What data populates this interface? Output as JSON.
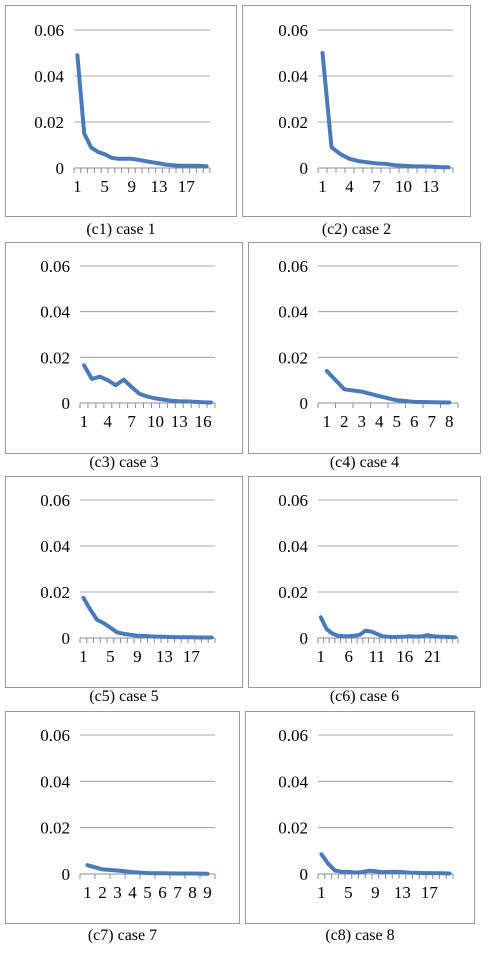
{
  "chart_data": [
    {
      "type": "line",
      "caption": "(c1) case 1",
      "x": [
        1,
        2,
        3,
        4,
        5,
        6,
        7,
        8,
        9,
        10,
        11,
        12,
        13,
        14,
        15,
        16,
        17,
        18,
        19,
        20
      ],
      "x_tick_labels": [
        "1",
        "5",
        "9",
        "13",
        "17"
      ],
      "x_tick_values": [
        1,
        5,
        9,
        13,
        17
      ],
      "y_tick_labels": [
        "0",
        "0.02",
        "0.04",
        "0.06"
      ],
      "ylim": [
        0,
        0.06
      ],
      "grid": true,
      "values": [
        0.049,
        0.015,
        0.009,
        0.007,
        0.006,
        0.0045,
        0.004,
        0.004,
        0.004,
        0.0035,
        0.003,
        0.0025,
        0.002,
        0.0015,
        0.0012,
        0.001,
        0.001,
        0.001,
        0.0009,
        0.0008
      ]
    },
    {
      "type": "line",
      "caption": "(c2) case 2",
      "x": [
        1,
        2,
        3,
        4,
        5,
        6,
        7,
        8,
        9,
        10,
        11,
        12,
        13,
        14,
        15
      ],
      "x_tick_labels": [
        "1",
        "4",
        "7",
        "10",
        "13"
      ],
      "x_tick_values": [
        1,
        4,
        7,
        10,
        13
      ],
      "y_tick_labels": [
        "0",
        "0.02",
        "0.04",
        "0.06"
      ],
      "ylim": [
        0,
        0.06
      ],
      "grid": true,
      "values": [
        0.05,
        0.009,
        0.006,
        0.004,
        0.003,
        0.0025,
        0.002,
        0.0018,
        0.0012,
        0.001,
        0.0008,
        0.0007,
        0.0006,
        0.0004,
        0.0003
      ]
    },
    {
      "type": "line",
      "caption": "(c3) case 3",
      "x": [
        1,
        2,
        3,
        4,
        5,
        6,
        7,
        8,
        9,
        10,
        11,
        12,
        13,
        14,
        15,
        16,
        17
      ],
      "x_tick_labels": [
        "1",
        "4",
        "7",
        "10",
        "13",
        "16"
      ],
      "x_tick_values": [
        1,
        4,
        7,
        10,
        13,
        16
      ],
      "y_tick_labels": [
        "0",
        "0.02",
        "0.04",
        "0.06"
      ],
      "ylim": [
        0,
        0.06
      ],
      "grid": true,
      "values": [
        0.0165,
        0.0105,
        0.0115,
        0.01,
        0.0078,
        0.0102,
        0.007,
        0.004,
        0.0028,
        0.002,
        0.0015,
        0.001,
        0.0008,
        0.0007,
        0.0005,
        0.0003,
        0.0002
      ]
    },
    {
      "type": "line",
      "caption": "(c4) case 4",
      "x": [
        1,
        2,
        3,
        4,
        5,
        6,
        7,
        8
      ],
      "x_tick_labels": [
        "1",
        "2",
        "3",
        "4",
        "5",
        "6",
        "7",
        "8"
      ],
      "x_tick_values": [
        1,
        2,
        3,
        4,
        5,
        6,
        7,
        8
      ],
      "y_tick_labels": [
        "0",
        "0.02",
        "0.04",
        "0.06"
      ],
      "ylim": [
        0,
        0.06
      ],
      "grid": true,
      "values": [
        0.014,
        0.006,
        0.005,
        0.003,
        0.0012,
        0.0005,
        0.0003,
        0.0002
      ]
    },
    {
      "type": "line",
      "caption": "(c5) case 5",
      "x": [
        1,
        2,
        3,
        4,
        5,
        6,
        7,
        8,
        9,
        10,
        11,
        12,
        13,
        14,
        15,
        16,
        17,
        18,
        19,
        20
      ],
      "x_tick_labels": [
        "1",
        "5",
        "9",
        "13",
        "17"
      ],
      "x_tick_values": [
        1,
        5,
        9,
        13,
        17
      ],
      "y_tick_labels": [
        "0",
        "0.02",
        "0.04",
        "0.06"
      ],
      "ylim": [
        0,
        0.06
      ],
      "grid": true,
      "values": [
        0.0175,
        0.0125,
        0.008,
        0.0065,
        0.0045,
        0.0025,
        0.0018,
        0.0014,
        0.001,
        0.0009,
        0.0007,
        0.0006,
        0.0005,
        0.0004,
        0.0004,
        0.0003,
        0.0003,
        0.0002,
        0.0002,
        0.0002
      ]
    },
    {
      "type": "line",
      "caption": "(c6) case 6",
      "x": [
        1,
        2,
        3,
        4,
        5,
        6,
        7,
        8,
        9,
        10,
        11,
        12,
        13,
        14,
        15,
        16,
        17,
        18,
        19,
        20,
        21,
        22,
        23,
        24,
        25
      ],
      "x_tick_labels": [
        "1",
        "6",
        "11",
        "16",
        "21"
      ],
      "x_tick_values": [
        1,
        6,
        11,
        16,
        21
      ],
      "y_tick_labels": [
        "0",
        "0.02",
        "0.04",
        "0.06"
      ],
      "ylim": [
        0,
        0.06
      ],
      "grid": true,
      "values": [
        0.009,
        0.004,
        0.002,
        0.001,
        0.0008,
        0.0008,
        0.001,
        0.0015,
        0.0032,
        0.0028,
        0.0018,
        0.0008,
        0.0005,
        0.0004,
        0.0005,
        0.0006,
        0.0008,
        0.0006,
        0.0007,
        0.0012,
        0.0008,
        0.0006,
        0.0005,
        0.0004,
        0.0003
      ]
    },
    {
      "type": "line",
      "caption": "(c7) case 7",
      "x": [
        1,
        2,
        3,
        4,
        5,
        6,
        7,
        8,
        9
      ],
      "x_tick_labels": [
        "1",
        "2",
        "3",
        "4",
        "5",
        "6",
        "7",
        "8",
        "9"
      ],
      "x_tick_values": [
        1,
        2,
        3,
        4,
        5,
        6,
        7,
        8,
        9
      ],
      "y_tick_labels": [
        "0",
        "0.02",
        "0.04",
        "0.06"
      ],
      "ylim": [
        0,
        0.06
      ],
      "grid": true,
      "values": [
        0.0038,
        0.002,
        0.0015,
        0.0008,
        0.0004,
        0.0003,
        0.0002,
        0.0002,
        0.0001
      ]
    },
    {
      "type": "line",
      "caption": "(c8) case 8",
      "x": [
        1,
        2,
        3,
        4,
        5,
        6,
        7,
        8,
        9,
        10,
        11,
        12,
        13,
        14,
        15,
        16,
        17,
        18,
        19,
        20
      ],
      "x_tick_labels": [
        "1",
        "5",
        "9",
        "13",
        "17"
      ],
      "x_tick_values": [
        1,
        5,
        9,
        13,
        17
      ],
      "y_tick_labels": [
        "0",
        "0.02",
        "0.04",
        "0.06"
      ],
      "ylim": [
        0,
        0.06
      ],
      "grid": true,
      "values": [
        0.0085,
        0.0045,
        0.0015,
        0.001,
        0.0009,
        0.0006,
        0.0008,
        0.0014,
        0.0012,
        0.0008,
        0.0009,
        0.001,
        0.0008,
        0.0006,
        0.0005,
        0.0004,
        0.0004,
        0.0003,
        0.0003,
        0.0002
      ]
    }
  ]
}
